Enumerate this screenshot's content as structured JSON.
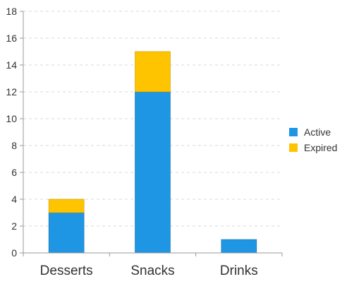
{
  "chart_data": {
    "type": "bar",
    "stacked": true,
    "categories": [
      "Desserts",
      "Snacks",
      "Drinks"
    ],
    "series": [
      {
        "name": "Active",
        "values": [
          3,
          12,
          1
        ],
        "color": "#1F96E3"
      },
      {
        "name": "Expired",
        "values": [
          1,
          3,
          0
        ],
        "color": "#FFC400"
      }
    ],
    "ylim": [
      0,
      18
    ],
    "yticks": [
      0,
      2,
      4,
      6,
      8,
      10,
      12,
      14,
      16,
      18
    ],
    "grid": true,
    "legend_position": "right",
    "title": "",
    "xlabel": "",
    "ylabel": ""
  },
  "colors": {
    "axis": "#999999",
    "grid": "#d9d9d9",
    "bar_stroke": "#1a6fa8"
  }
}
